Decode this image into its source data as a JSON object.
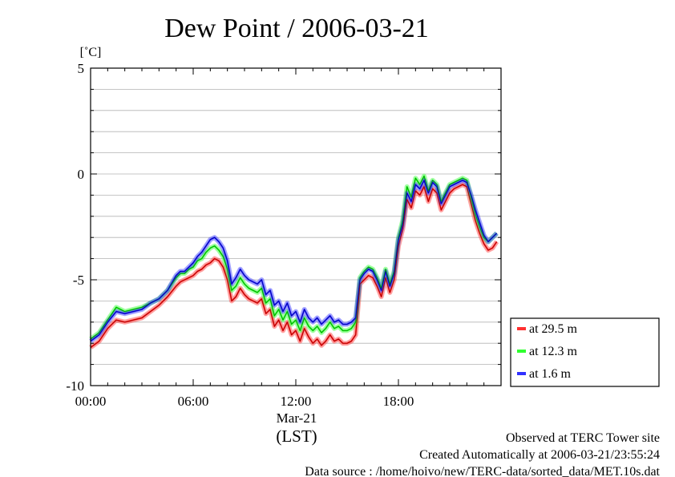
{
  "chart_data": {
    "type": "line",
    "title": "Dew Point / 2006-03-21",
    "ylabel": "[˚C]",
    "xlabel": "(LST)",
    "date_label": "Mar-21",
    "ylim": [
      -10,
      5
    ],
    "x_range_hours": [
      0,
      24
    ],
    "y_ticks": [
      5,
      0,
      -5,
      -10
    ],
    "y_tick_labels": [
      "5",
      "0",
      "-5",
      "-10"
    ],
    "x_ticks_hours": [
      0,
      6,
      12,
      18
    ],
    "x_tick_labels": [
      "00:00",
      "06:00",
      "12:00",
      "18:00"
    ],
    "grid": true,
    "legend_position": "right",
    "series": [
      {
        "name": "at 29.5 m",
        "color": "#ff3030",
        "x": [
          0.0,
          0.5,
          1.0,
          1.5,
          2.0,
          2.5,
          3.0,
          3.5,
          4.0,
          4.5,
          5.0,
          5.25,
          5.5,
          5.75,
          6.0,
          6.25,
          6.5,
          6.75,
          7.0,
          7.25,
          7.5,
          7.75,
          8.0,
          8.25,
          8.5,
          8.75,
          9.0,
          9.25,
          9.5,
          9.75,
          10.0,
          10.25,
          10.5,
          10.75,
          11.0,
          11.25,
          11.5,
          11.75,
          12.0,
          12.25,
          12.5,
          12.75,
          13.0,
          13.25,
          13.5,
          13.75,
          14.0,
          14.25,
          14.5,
          14.75,
          15.0,
          15.25,
          15.5,
          15.75,
          16.0,
          16.25,
          16.5,
          16.75,
          17.0,
          17.25,
          17.5,
          17.75,
          18.0,
          18.25,
          18.5,
          18.75,
          19.0,
          19.25,
          19.5,
          19.75,
          20.0,
          20.25,
          20.5,
          20.75,
          21.0,
          21.25,
          21.5,
          21.75,
          22.0,
          22.25,
          22.5,
          22.75,
          23.0,
          23.25,
          23.5,
          23.75
        ],
        "values": [
          -8.2,
          -7.9,
          -7.3,
          -6.9,
          -7.0,
          -6.9,
          -6.8,
          -6.5,
          -6.2,
          -5.8,
          -5.3,
          -5.1,
          -5.0,
          -4.9,
          -4.8,
          -4.6,
          -4.5,
          -4.3,
          -4.2,
          -4.0,
          -4.1,
          -4.4,
          -5.0,
          -6.0,
          -5.8,
          -5.4,
          -5.7,
          -5.9,
          -6.0,
          -6.1,
          -5.9,
          -6.6,
          -6.4,
          -7.2,
          -6.9,
          -7.4,
          -7.0,
          -7.6,
          -7.4,
          -7.9,
          -7.3,
          -7.7,
          -8.0,
          -7.8,
          -8.1,
          -7.9,
          -7.6,
          -7.9,
          -7.8,
          -8.0,
          -8.0,
          -7.9,
          -7.6,
          -5.2,
          -5.0,
          -4.8,
          -4.9,
          -5.3,
          -5.8,
          -4.9,
          -5.6,
          -5.0,
          -3.4,
          -2.6,
          -1.2,
          -1.6,
          -0.8,
          -1.0,
          -0.6,
          -1.3,
          -0.7,
          -0.9,
          -1.7,
          -1.3,
          -0.9,
          -0.7,
          -0.6,
          -0.5,
          -0.6,
          -1.4,
          -2.2,
          -2.8,
          -3.3,
          -3.6,
          -3.5,
          -3.2
        ]
      },
      {
        "name": "at 12.3 m",
        "color": "#30ff30",
        "x": [
          0.0,
          0.5,
          1.0,
          1.5,
          2.0,
          2.5,
          3.0,
          3.5,
          4.0,
          4.5,
          5.0,
          5.25,
          5.5,
          5.75,
          6.0,
          6.25,
          6.5,
          6.75,
          7.0,
          7.25,
          7.5,
          7.75,
          8.0,
          8.25,
          8.5,
          8.75,
          9.0,
          9.25,
          9.5,
          9.75,
          10.0,
          10.25,
          10.5,
          10.75,
          11.0,
          11.25,
          11.5,
          11.75,
          12.0,
          12.25,
          12.5,
          12.75,
          13.0,
          13.25,
          13.5,
          13.75,
          14.0,
          14.25,
          14.5,
          14.75,
          15.0,
          15.25,
          15.5,
          15.75,
          16.0,
          16.25,
          16.5,
          16.75,
          17.0,
          17.25,
          17.5,
          17.75,
          18.0,
          18.25,
          18.5,
          18.75,
          19.0,
          19.25,
          19.5,
          19.75,
          20.0,
          20.25,
          20.5,
          20.75,
          21.0,
          21.25,
          21.5,
          21.75,
          22.0,
          22.25,
          22.5,
          22.75,
          23.0,
          23.25,
          23.5,
          23.75
        ],
        "values": [
          -7.8,
          -7.5,
          -6.9,
          -6.3,
          -6.5,
          -6.4,
          -6.3,
          -6.1,
          -5.9,
          -5.5,
          -4.9,
          -4.7,
          -4.7,
          -4.5,
          -4.4,
          -4.1,
          -4.0,
          -3.7,
          -3.5,
          -3.4,
          -3.6,
          -3.9,
          -4.5,
          -5.5,
          -5.3,
          -4.9,
          -5.2,
          -5.4,
          -5.5,
          -5.6,
          -5.4,
          -6.1,
          -5.9,
          -6.7,
          -6.4,
          -6.9,
          -6.5,
          -7.1,
          -6.9,
          -7.4,
          -6.8,
          -7.2,
          -7.4,
          -7.2,
          -7.5,
          -7.3,
          -7.0,
          -7.3,
          -7.2,
          -7.4,
          -7.4,
          -7.3,
          -7.0,
          -4.9,
          -4.6,
          -4.4,
          -4.5,
          -4.9,
          -5.4,
          -4.5,
          -5.2,
          -4.6,
          -3.0,
          -2.2,
          -0.6,
          -1.1,
          -0.2,
          -0.5,
          -0.1,
          -0.8,
          -0.3,
          -0.5,
          -1.3,
          -0.9,
          -0.5,
          -0.4,
          -0.3,
          -0.2,
          -0.3,
          -1.1,
          -1.9,
          -2.5,
          -3.0,
          -3.2,
          -3.0,
          -2.8
        ]
      },
      {
        "name": "at 1.6 m",
        "color": "#3030ff",
        "x": [
          0.0,
          0.5,
          1.0,
          1.5,
          2.0,
          2.5,
          3.0,
          3.5,
          4.0,
          4.5,
          5.0,
          5.25,
          5.5,
          5.75,
          6.0,
          6.25,
          6.5,
          6.75,
          7.0,
          7.25,
          7.5,
          7.75,
          8.0,
          8.25,
          8.5,
          8.75,
          9.0,
          9.25,
          9.5,
          9.75,
          10.0,
          10.25,
          10.5,
          10.75,
          11.0,
          11.25,
          11.5,
          11.75,
          12.0,
          12.25,
          12.5,
          12.75,
          13.0,
          13.25,
          13.5,
          13.75,
          14.0,
          14.25,
          14.5,
          14.75,
          15.0,
          15.25,
          15.5,
          15.75,
          16.0,
          16.25,
          16.5,
          16.75,
          17.0,
          17.25,
          17.5,
          17.75,
          18.0,
          18.25,
          18.5,
          18.75,
          19.0,
          19.25,
          19.5,
          19.75,
          20.0,
          20.25,
          20.5,
          20.75,
          21.0,
          21.25,
          21.5,
          21.75,
          22.0,
          22.25,
          22.5,
          22.75,
          23.0,
          23.25,
          23.5,
          23.75
        ],
        "values": [
          -7.9,
          -7.6,
          -7.0,
          -6.5,
          -6.6,
          -6.5,
          -6.4,
          -6.1,
          -5.9,
          -5.5,
          -4.8,
          -4.6,
          -4.6,
          -4.4,
          -4.2,
          -3.9,
          -3.7,
          -3.4,
          -3.1,
          -3.0,
          -3.2,
          -3.5,
          -4.1,
          -5.2,
          -4.9,
          -4.5,
          -4.8,
          -5.0,
          -5.1,
          -5.2,
          -5.0,
          -5.7,
          -5.5,
          -6.2,
          -6.0,
          -6.5,
          -6.1,
          -6.7,
          -6.5,
          -7.0,
          -6.4,
          -6.8,
          -7.0,
          -6.8,
          -7.1,
          -6.9,
          -6.7,
          -7.0,
          -6.9,
          -7.1,
          -7.1,
          -7.0,
          -6.8,
          -5.0,
          -4.7,
          -4.5,
          -4.6,
          -5.0,
          -5.5,
          -4.6,
          -5.3,
          -4.7,
          -3.1,
          -2.4,
          -0.9,
          -1.3,
          -0.5,
          -0.7,
          -0.3,
          -0.9,
          -0.4,
          -0.6,
          -1.4,
          -1.0,
          -0.6,
          -0.5,
          -0.4,
          -0.3,
          -0.4,
          -1.0,
          -1.7,
          -2.3,
          -2.9,
          -3.2,
          -3.0,
          -2.8
        ]
      }
    ]
  },
  "footer": {
    "line1": "Observed at TERC Tower site",
    "line2": "Created Automatically at 2006-03-21/23:55:24",
    "line3": "Data source : /home/hoivo/new/TERC-data/sorted_data/MET.10s.dat"
  }
}
